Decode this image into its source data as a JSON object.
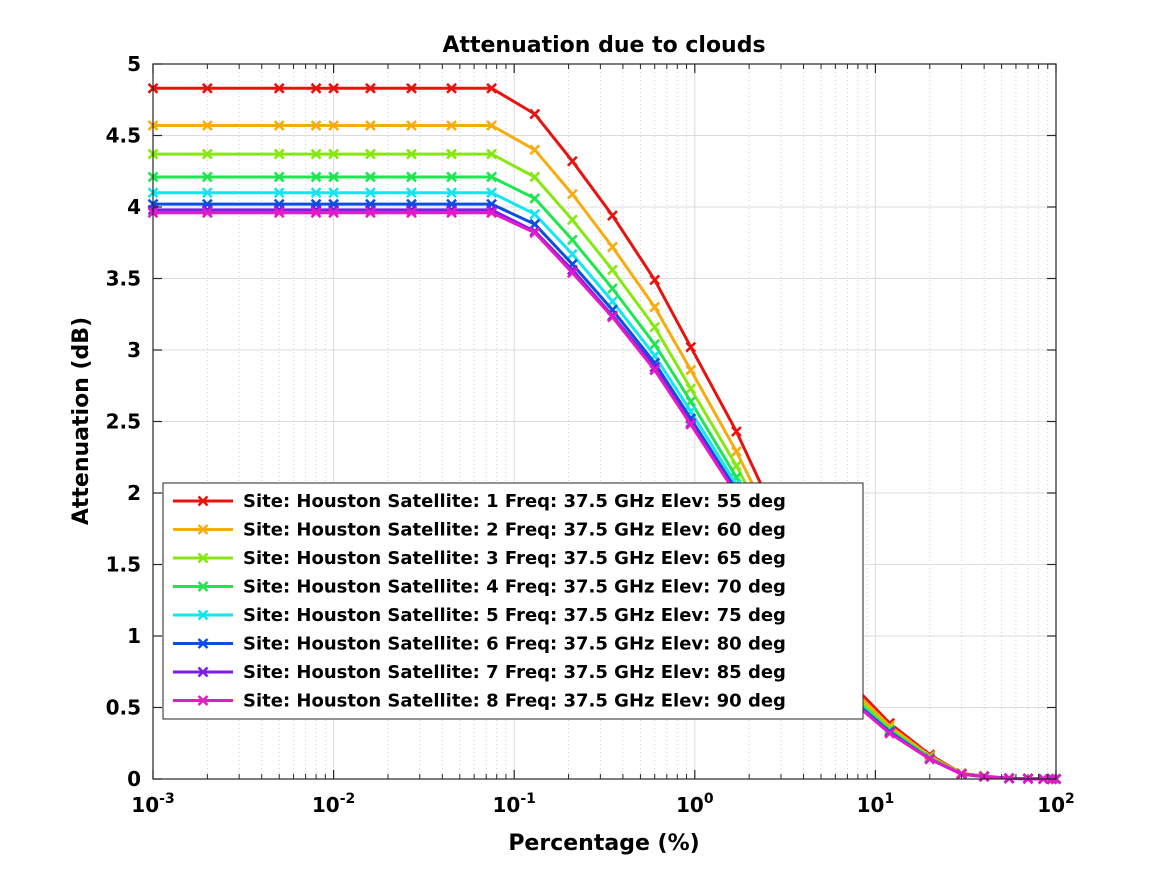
{
  "chart_data": {
    "type": "line",
    "title": "Attenuation due to clouds",
    "xlabel": "Percentage (%)",
    "ylabel": "Attenuation (dB)",
    "xscale": "log",
    "xlim": [
      0.001,
      100
    ],
    "ylim": [
      0,
      5
    ],
    "grid": true,
    "legend_position": "lower-left",
    "x_ticks": [
      {
        "base": "10",
        "exp": "-3",
        "value": 0.001
      },
      {
        "base": "10",
        "exp": "-2",
        "value": 0.01
      },
      {
        "base": "10",
        "exp": "-1",
        "value": 0.1
      },
      {
        "base": "10",
        "exp": "0",
        "value": 1
      },
      {
        "base": "10",
        "exp": "1",
        "value": 10
      },
      {
        "base": "10",
        "exp": "2",
        "value": 100
      }
    ],
    "y_ticks": [
      {
        "label": "0",
        "value": 0
      },
      {
        "label": "0.5",
        "value": 0.5
      },
      {
        "label": "1",
        "value": 1
      },
      {
        "label": "1.5",
        "value": 1.5
      },
      {
        "label": "2",
        "value": 2
      },
      {
        "label": "2.5",
        "value": 2.5
      },
      {
        "label": "3",
        "value": 3
      },
      {
        "label": "3.5",
        "value": 3.5
      },
      {
        "label": "4",
        "value": 4
      },
      {
        "label": "4.5",
        "value": 4.5
      },
      {
        "label": "5",
        "value": 5
      }
    ],
    "x": [
      0.001,
      0.002,
      0.005,
      0.008,
      0.01,
      0.016,
      0.027,
      0.045,
      0.075,
      0.13,
      0.21,
      0.35,
      0.6,
      0.95,
      1.7,
      3,
      5,
      8,
      12,
      20,
      30,
      40,
      55,
      70,
      85,
      95,
      100
    ],
    "series": [
      {
        "name": "Site: Houston Satellite: 1 Freq: 37.5 GHz Elev: 55 deg",
        "color": "#e8120f",
        "values": [
          4.83,
          4.83,
          4.83,
          4.83,
          4.83,
          4.83,
          4.83,
          4.83,
          4.83,
          4.65,
          4.32,
          3.94,
          3.49,
          3.02,
          2.43,
          1.76,
          1.08,
          0.62,
          0.39,
          0.17,
          0.04,
          0.02,
          0.005,
          0.002,
          0.001,
          0.0,
          0.0
        ]
      },
      {
        "name": "Site: Houston Satellite: 2 Freq: 37.5 GHz Elev: 60 deg",
        "color": "#f6ac0e",
        "values": [
          4.57,
          4.57,
          4.57,
          4.57,
          4.57,
          4.57,
          4.57,
          4.57,
          4.57,
          4.4,
          4.09,
          3.72,
          3.3,
          2.86,
          2.29,
          1.66,
          1.02,
          0.59,
          0.37,
          0.16,
          0.04,
          0.02,
          0.005,
          0.002,
          0.001,
          0.0,
          0.0
        ]
      },
      {
        "name": "Site: Houston Satellite: 3 Freq: 37.5 GHz Elev: 65 deg",
        "color": "#86e80f",
        "values": [
          4.37,
          4.37,
          4.37,
          4.37,
          4.37,
          4.37,
          4.37,
          4.37,
          4.37,
          4.21,
          3.91,
          3.56,
          3.16,
          2.73,
          2.19,
          1.59,
          0.98,
          0.56,
          0.35,
          0.15,
          0.035,
          0.018,
          0.005,
          0.002,
          0.001,
          0.0,
          0.0
        ]
      },
      {
        "name": "Site: Houston Satellite: 4 Freq: 37.5 GHz Elev: 70 deg",
        "color": "#1ee650",
        "values": [
          4.21,
          4.21,
          4.21,
          4.21,
          4.21,
          4.21,
          4.21,
          4.21,
          4.21,
          4.06,
          3.77,
          3.43,
          3.04,
          2.64,
          2.11,
          1.53,
          0.94,
          0.54,
          0.34,
          0.15,
          0.035,
          0.018,
          0.005,
          0.002,
          0.001,
          0.0,
          0.0
        ]
      },
      {
        "name": "Site: Houston Satellite: 5 Freq: 37.5 GHz Elev: 75 deg",
        "color": "#12e6ee",
        "values": [
          4.1,
          4.1,
          4.1,
          4.1,
          4.1,
          4.1,
          4.1,
          4.1,
          4.1,
          3.95,
          3.67,
          3.34,
          2.96,
          2.57,
          2.06,
          1.49,
          0.92,
          0.53,
          0.33,
          0.14,
          0.035,
          0.017,
          0.005,
          0.002,
          0.001,
          0.0,
          0.0
        ]
      },
      {
        "name": "Site: Houston Satellite: 6 Freq: 37.5 GHz Elev: 80 deg",
        "color": "#0a4fe0",
        "values": [
          4.02,
          4.02,
          4.02,
          4.02,
          4.02,
          4.02,
          4.02,
          4.02,
          4.02,
          3.88,
          3.6,
          3.28,
          2.91,
          2.52,
          2.02,
          1.46,
          0.9,
          0.52,
          0.33,
          0.14,
          0.034,
          0.017,
          0.005,
          0.002,
          0.001,
          0.0,
          0.0
        ]
      },
      {
        "name": "Site: Houston Satellite: 7 Freq: 37.5 GHz Elev: 85 deg",
        "color": "#7a1ee6",
        "values": [
          3.98,
          3.98,
          3.98,
          3.98,
          3.98,
          3.98,
          3.98,
          3.98,
          3.98,
          3.83,
          3.56,
          3.24,
          2.88,
          2.49,
          2.0,
          1.45,
          0.89,
          0.51,
          0.32,
          0.14,
          0.034,
          0.017,
          0.005,
          0.002,
          0.001,
          0.0,
          0.0
        ]
      },
      {
        "name": "Site: Houston Satellite: 8 Freq: 37.5 GHz Elev: 90 deg",
        "color": "#e619c8",
        "values": [
          3.96,
          3.96,
          3.96,
          3.96,
          3.96,
          3.96,
          3.96,
          3.96,
          3.96,
          3.82,
          3.54,
          3.23,
          2.86,
          2.48,
          1.99,
          1.44,
          0.89,
          0.51,
          0.32,
          0.14,
          0.034,
          0.017,
          0.005,
          0.002,
          0.001,
          0.0,
          0.0
        ]
      }
    ]
  }
}
